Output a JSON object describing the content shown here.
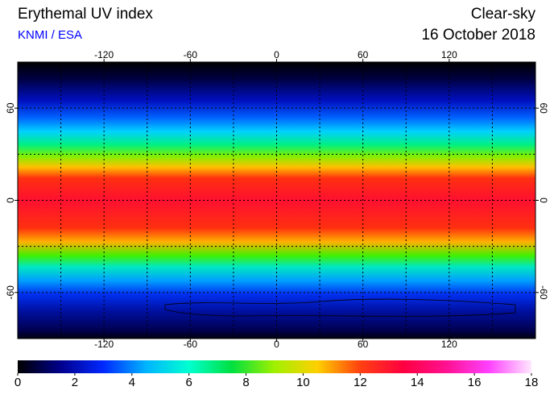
{
  "header": {
    "title": "Erythemal UV index",
    "source": "KNMI / ESA",
    "condition": "Clear-sky",
    "date": "16 October 2018"
  },
  "map": {
    "xlim": [
      -180,
      180
    ],
    "ylim": [
      -90,
      90
    ],
    "xticks": [
      -120,
      -60,
      0,
      60,
      120
    ],
    "yticks": [
      -60,
      0,
      60
    ],
    "x_grid": [
      -150,
      -120,
      -90,
      -60,
      -30,
      0,
      30,
      60,
      90,
      120,
      150
    ],
    "y_grid": [
      -60,
      -30,
      0,
      30,
      60
    ]
  },
  "colorbar": {
    "lim": [
      0,
      18
    ],
    "ticks": [
      0,
      2,
      4,
      6,
      8,
      10,
      12,
      14,
      16,
      18
    ],
    "colors": [
      "#000000",
      "#00008c",
      "#0028ff",
      "#00b4ff",
      "#00ffd0",
      "#00e040",
      "#a0f000",
      "#ffd000",
      "#ff4010",
      "#ff0040",
      "#ff1090",
      "#ff40ff",
      "#ffe8ff"
    ]
  }
}
